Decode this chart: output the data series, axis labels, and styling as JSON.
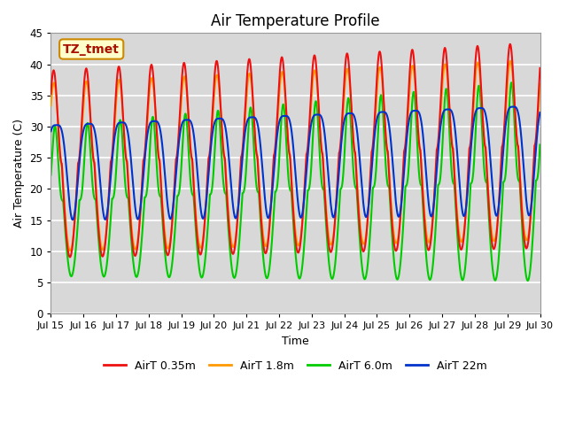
{
  "title": "Air Temperature Profile",
  "xlabel": "Time",
  "ylabel": "Air Temperature (C)",
  "ylim": [
    0,
    45
  ],
  "bg_color": "#d8d8d8",
  "fig_bg": "#ffffff",
  "annotation_text": "TZ_tmet",
  "annotation_bg": "#ffffcc",
  "annotation_edge": "#cc8800",
  "series_colors": {
    "AirT 0.35m": "#ee1111",
    "AirT 1.8m": "#ff9900",
    "AirT 6.0m": "#00cc00",
    "AirT 22m": "#0033cc"
  },
  "series_lw": 1.5,
  "grid_color": "#ffffff",
  "xtick_labels": [
    "Jul 15",
    "Jul 16",
    "Jul 17",
    "Jul 18",
    "Jul 19",
    "Jul 20",
    "Jul 21",
    "Jul 22",
    "Jul 23",
    "Jul 24",
    "Jul 25",
    "Jul 26",
    "Jul 27",
    "Jul 28",
    "Jul 29",
    "Jul 30"
  ],
  "n_days": 15,
  "n_points": 2160
}
